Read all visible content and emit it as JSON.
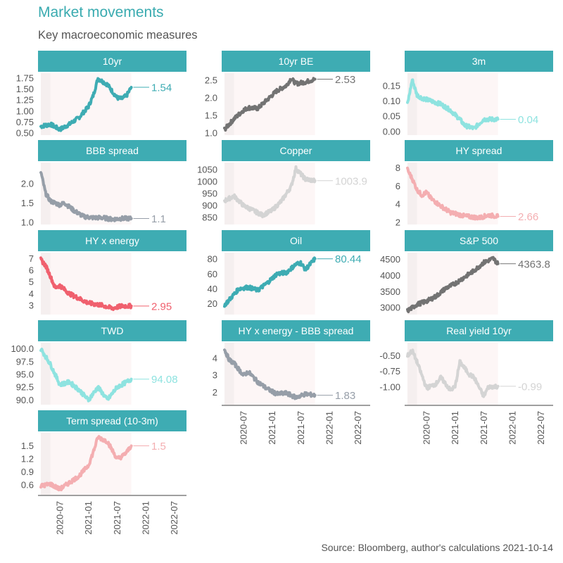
{
  "header": {
    "title": "Market movements",
    "subtitle": "Key macroeconomic measures"
  },
  "caption": "Source: Bloomberg, author's calculations 2021-10-14",
  "chart_data": {
    "type": "line",
    "layout": "facet-grid-3-columns",
    "title": "Market movements",
    "subtitle": "Key macroeconomic measures",
    "x_axis": {
      "type": "date",
      "range": [
        "2020-03",
        "2022-09"
      ],
      "ticks": [
        "2020-07",
        "2021-01",
        "2021-07",
        "2022-01",
        "2022-07"
      ]
    },
    "shaded_period": {
      "start": "2020-03",
      "end": "2021-10",
      "note": "lighter band at start ~2020-03 to 2020-05"
    },
    "panels": [
      {
        "name": "10yr",
        "color": "#3eacb3",
        "last_label": "1.54",
        "yticks": [
          "0.50",
          "0.75",
          "1.00",
          "1.25",
          "1.50",
          "1.75"
        ],
        "ylim": [
          0.5,
          1.78
        ],
        "x": [
          "2020-03",
          "2020-05",
          "2020-07",
          "2020-09",
          "2020-11",
          "2021-01",
          "2021-02",
          "2021-03",
          "2021-05",
          "2021-07",
          "2021-08",
          "2021-09",
          "2021-10"
        ],
        "values": [
          0.65,
          0.7,
          0.58,
          0.7,
          0.85,
          1.1,
          1.35,
          1.74,
          1.6,
          1.3,
          1.28,
          1.35,
          1.54
        ]
      },
      {
        "name": "10yr BE",
        "color": "#737373",
        "last_label": "2.53",
        "yticks": [
          "1.0",
          "1.5",
          "2.0",
          "2.5"
        ],
        "ylim": [
          1.0,
          2.6
        ],
        "x": [
          "2020-03",
          "2020-05",
          "2020-07",
          "2020-08",
          "2020-10",
          "2020-12",
          "2021-02",
          "2021-04",
          "2021-05",
          "2021-06",
          "2021-08",
          "2021-10"
        ],
        "values": [
          1.1,
          1.4,
          1.65,
          1.72,
          1.7,
          1.95,
          2.2,
          2.35,
          2.55,
          2.4,
          2.45,
          2.53
        ]
      },
      {
        "name": "3m",
        "color": "#8ee3e0",
        "last_label": "0.04",
        "yticks": [
          "0.00",
          "0.05",
          "0.10",
          "0.15"
        ],
        "ylim": [
          -0.005,
          0.18
        ],
        "x": [
          "2020-03",
          "2020-04",
          "2020-05",
          "2020-06",
          "2020-08",
          "2020-10",
          "2020-12",
          "2021-02",
          "2021-03",
          "2021-05",
          "2021-07",
          "2021-09",
          "2021-10"
        ],
        "values": [
          0.09,
          0.17,
          0.12,
          0.11,
          0.1,
          0.09,
          0.07,
          0.04,
          0.02,
          0.01,
          0.04,
          0.04,
          0.04
        ]
      },
      {
        "name": "BBB spread",
        "color": "#969ea8",
        "last_label": "1.1",
        "yticks": [
          "1.0",
          "1.5",
          "2.0"
        ],
        "ylim": [
          1.0,
          2.45
        ],
        "x": [
          "2020-03",
          "2020-04",
          "2020-05",
          "2020-07",
          "2020-08",
          "2020-10",
          "2020-12",
          "2021-02",
          "2021-04",
          "2021-06",
          "2021-08",
          "2021-10"
        ],
        "values": [
          2.3,
          1.75,
          1.55,
          1.45,
          1.5,
          1.3,
          1.15,
          1.12,
          1.12,
          1.08,
          1.1,
          1.1
        ]
      },
      {
        "name": "Copper",
        "color": "#d4d4d4",
        "last_label": "1003.9",
        "yticks": [
          "850",
          "900",
          "950",
          "1000",
          "1050"
        ],
        "ylim": [
          830,
          1065
        ],
        "x": [
          "2020-03",
          "2020-05",
          "2020-07",
          "2020-09",
          "2020-11",
          "2021-01",
          "2021-03",
          "2021-05",
          "2021-06",
          "2021-08",
          "2021-10"
        ],
        "values": [
          920,
          940,
          900,
          880,
          860,
          880,
          920,
          980,
          1055,
          1010,
          1004
        ]
      },
      {
        "name": "HY spread",
        "color": "#f4aeb1",
        "last_label": "2.66",
        "yticks": [
          "2",
          "4",
          "6",
          "8"
        ],
        "ylim": [
          2,
          8.2
        ],
        "x": [
          "2020-03",
          "2020-04",
          "2020-05",
          "2020-06",
          "2020-07",
          "2020-08",
          "2020-10",
          "2020-12",
          "2021-03",
          "2021-06",
          "2021-08",
          "2021-10"
        ],
        "values": [
          7.8,
          6.8,
          5.6,
          5.0,
          5.3,
          4.6,
          3.8,
          3.1,
          2.7,
          2.5,
          2.8,
          2.66
        ]
      },
      {
        "name": "HY x energy",
        "color": "#f0606e",
        "last_label": "2.95",
        "yticks": [
          "3",
          "4",
          "5",
          "6",
          "7"
        ],
        "ylim": [
          2.4,
          7.2
        ],
        "x": [
          "2020-03",
          "2020-04",
          "2020-05",
          "2020-06",
          "2020-07",
          "2020-09",
          "2020-11",
          "2021-01",
          "2021-04",
          "2021-06",
          "2021-08",
          "2021-10"
        ],
        "values": [
          6.9,
          6.4,
          5.5,
          4.5,
          4.7,
          4.0,
          3.6,
          3.2,
          3.0,
          2.75,
          2.95,
          2.95
        ]
      },
      {
        "name": "Oil",
        "color": "#3eacb3",
        "last_label": "80.44",
        "yticks": [
          "20",
          "40",
          "60",
          "80"
        ],
        "ylim": [
          8,
          84
        ],
        "x": [
          "2020-03",
          "2020-04",
          "2020-06",
          "2020-08",
          "2020-10",
          "2020-12",
          "2021-02",
          "2021-04",
          "2021-06",
          "2021-07",
          "2021-08",
          "2021-10"
        ],
        "values": [
          18,
          25,
          40,
          42,
          38,
          48,
          60,
          62,
          73,
          75,
          66,
          80.44
        ]
      },
      {
        "name": "S&P 500",
        "color": "#737373",
        "last_label": "4363.8",
        "yticks": [
          "3000",
          "3500",
          "4000",
          "4500"
        ],
        "ylim": [
          2850,
          4600
        ],
        "x": [
          "2020-03",
          "2020-05",
          "2020-07",
          "2020-09",
          "2020-11",
          "2021-01",
          "2021-03",
          "2021-05",
          "2021-07",
          "2021-09",
          "2021-10"
        ],
        "values": [
          2900,
          3100,
          3200,
          3350,
          3600,
          3750,
          3950,
          4150,
          4400,
          4530,
          4363.8
        ]
      },
      {
        "name": "TWD",
        "color": "#8ee3e0",
        "last_label": "94.08",
        "yticks": [
          "90.0",
          "92.5",
          "95.0",
          "97.5",
          "100.0"
        ],
        "ylim": [
          89.5,
          100.5
        ],
        "x": [
          "2020-03",
          "2020-04",
          "2020-05",
          "2020-07",
          "2020-09",
          "2020-11",
          "2021-01",
          "2021-03",
          "2021-05",
          "2021-07",
          "2021-09",
          "2021-10"
        ],
        "values": [
          100.0,
          98.5,
          97.0,
          93.0,
          93.5,
          92.0,
          90.0,
          92.5,
          90.0,
          92.5,
          93.5,
          94.08
        ]
      },
      {
        "name": "HY x energy - BBB spread",
        "color": "#969ea8",
        "last_label": "1.83",
        "yticks": [
          "2",
          "3",
          "4"
        ],
        "ylim": [
          1.4,
          4.7
        ],
        "x": [
          "2020-03",
          "2020-04",
          "2020-05",
          "2020-07",
          "2020-08",
          "2020-10",
          "2020-12",
          "2021-02",
          "2021-04",
          "2021-06",
          "2021-08",
          "2021-10"
        ],
        "values": [
          4.5,
          3.9,
          3.7,
          3.0,
          3.2,
          2.6,
          2.2,
          1.9,
          1.95,
          1.7,
          1.9,
          1.83
        ]
      },
      {
        "name": "Real yield 10yr",
        "color": "#d4d4d4",
        "last_label": "-0.99",
        "yticks": [
          "-1.00",
          "-0.75",
          "-0.50"
        ],
        "ylim": [
          -1.25,
          -0.35
        ],
        "x": [
          "2020-03",
          "2020-04",
          "2020-05",
          "2020-07",
          "2020-09",
          "2020-10",
          "2020-12",
          "2021-01",
          "2021-02",
          "2021-04",
          "2021-05",
          "2021-07",
          "2021-08",
          "2021-10"
        ],
        "values": [
          -0.5,
          -0.42,
          -0.6,
          -1.02,
          -0.95,
          -0.85,
          -1.05,
          -1.0,
          -0.6,
          -0.8,
          -0.85,
          -1.15,
          -1.0,
          -0.99
        ]
      },
      {
        "name": "Term spread (10-3m)",
        "color": "#f4aeb1",
        "last_label": "1.5",
        "yticks": [
          "0.6",
          "0.9",
          "1.2",
          "1.5"
        ],
        "ylim": [
          0.42,
          1.72
        ],
        "x": [
          "2020-03",
          "2020-05",
          "2020-07",
          "2020-09",
          "2020-11",
          "2021-01",
          "2021-02",
          "2021-03",
          "2021-05",
          "2021-07",
          "2021-08",
          "2021-09",
          "2021-10"
        ],
        "values": [
          0.57,
          0.62,
          0.5,
          0.65,
          0.8,
          1.05,
          1.35,
          1.7,
          1.6,
          1.2,
          1.25,
          1.35,
          1.5
        ]
      }
    ]
  }
}
